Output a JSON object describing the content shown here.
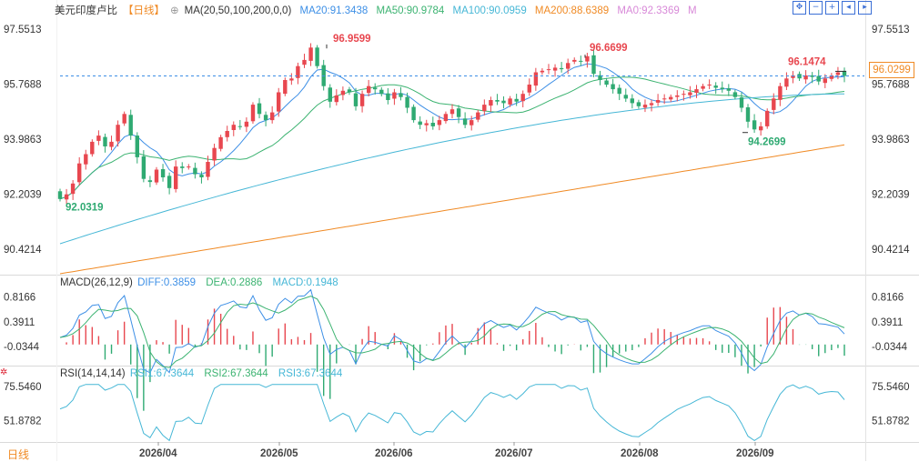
{
  "header": {
    "symbol": "美元印度卢比",
    "period": "【日线】",
    "ma_params": "MA(20,50,100,200,0,0)",
    "ma_items": [
      {
        "label": "MA20:91.3438",
        "color": "#3d8fe6"
      },
      {
        "label": "MA50:90.9784",
        "color": "#3cb371"
      },
      {
        "label": "MA100:90.0959",
        "color": "#46b7d6"
      },
      {
        "label": "MA200:88.6389",
        "color": "#f08a24"
      },
      {
        "label": "MA0:92.3369",
        "color": "#d889d8"
      },
      {
        "label": "M",
        "color": "#d889d8"
      }
    ]
  },
  "toolbar": [
    "move-icon",
    "minus-icon",
    "plus-icon",
    "back-icon",
    "forward-icon"
  ],
  "price_axis": {
    "labels": [
      "97.5513",
      "95.7688",
      "93.9863",
      "92.2039",
      "90.4214"
    ]
  },
  "current_price": "96.0299",
  "annotations": {
    "high1": "96.9599",
    "high2": "96.6699",
    "high3": "96.1474",
    "low1": "94.2699",
    "low0": "92.0319"
  },
  "macd": {
    "header": "MACD(26,12,9)",
    "items": [
      {
        "label": "DIFF:0.3859",
        "color": "#3d8fe6"
      },
      {
        "label": "DEA:0.2886",
        "color": "#3cb371"
      },
      {
        "label": "MACD:0.1948",
        "color": "#46b7d6"
      }
    ],
    "axis_labels": [
      "0.8166",
      "0.3911",
      "-0.0344"
    ]
  },
  "rsi": {
    "header": "RSI(14,14,14)",
    "items": [
      {
        "label": "RSI1:67.3644",
        "color": "#46b7d6"
      },
      {
        "label": "RSI2:67.3644",
        "color": "#3cb371"
      },
      {
        "label": "RSI3:67.3644",
        "color": "#46b7d6"
      }
    ],
    "axis_labels": [
      "75.5460",
      "51.8782"
    ]
  },
  "time_axis": [
    "2026/04",
    "2026/05",
    "2026/06",
    "2026/07",
    "2026/08",
    "2026/09"
  ],
  "period_tag": "日线",
  "colors": {
    "up": "#e8474f",
    "down": "#2faa72",
    "ma20": "#3d8fe6",
    "ma50": "#3cb371",
    "ma100": "#46b7d6",
    "ma200": "#f08a24"
  },
  "chart_data": {
    "type": "candlestick",
    "title": "美元印度卢比",
    "ylim": [
      89.6,
      97.9
    ],
    "closes": [
      92.05,
      92.2,
      92.55,
      93.2,
      93.5,
      93.9,
      94.1,
      93.75,
      93.9,
      94.45,
      94.8,
      94.1,
      93.4,
      92.7,
      92.6,
      93.0,
      92.75,
      92.4,
      93.1,
      93.05,
      93.1,
      92.85,
      92.75,
      93.25,
      93.7,
      94.05,
      94.25,
      94.45,
      94.4,
      94.55,
      95.1,
      94.8,
      94.6,
      94.85,
      95.5,
      95.9,
      95.95,
      96.35,
      96.55,
      96.95,
      96.35,
      95.7,
      95.2,
      95.4,
      95.55,
      95.5,
      95.05,
      95.45,
      95.7,
      95.6,
      95.45,
      95.25,
      95.5,
      95.35,
      95.0,
      94.6,
      94.45,
      94.5,
      94.4,
      94.6,
      94.8,
      94.95,
      94.7,
      94.45,
      94.6,
      94.85,
      95.1,
      95.25,
      95.2,
      95.15,
      95.3,
      95.2,
      95.45,
      95.75,
      96.15,
      96.2,
      96.25,
      96.3,
      96.25,
      96.45,
      96.55,
      96.5,
      96.67,
      96.1,
      95.9,
      95.75,
      95.6,
      95.45,
      95.3,
      95.15,
      95.05,
      95.1,
      95.15,
      95.25,
      95.3,
      95.35,
      95.4,
      95.45,
      95.5,
      95.6,
      95.7,
      95.75,
      95.65,
      95.6,
      95.55,
      95.35,
      95.0,
      94.55,
      94.3,
      94.4,
      94.9,
      95.3,
      95.7,
      95.95,
      96.05,
      95.95,
      96.05,
      96.0,
      95.85,
      95.95,
      96.05,
      96.15,
      96.03
    ]
  }
}
